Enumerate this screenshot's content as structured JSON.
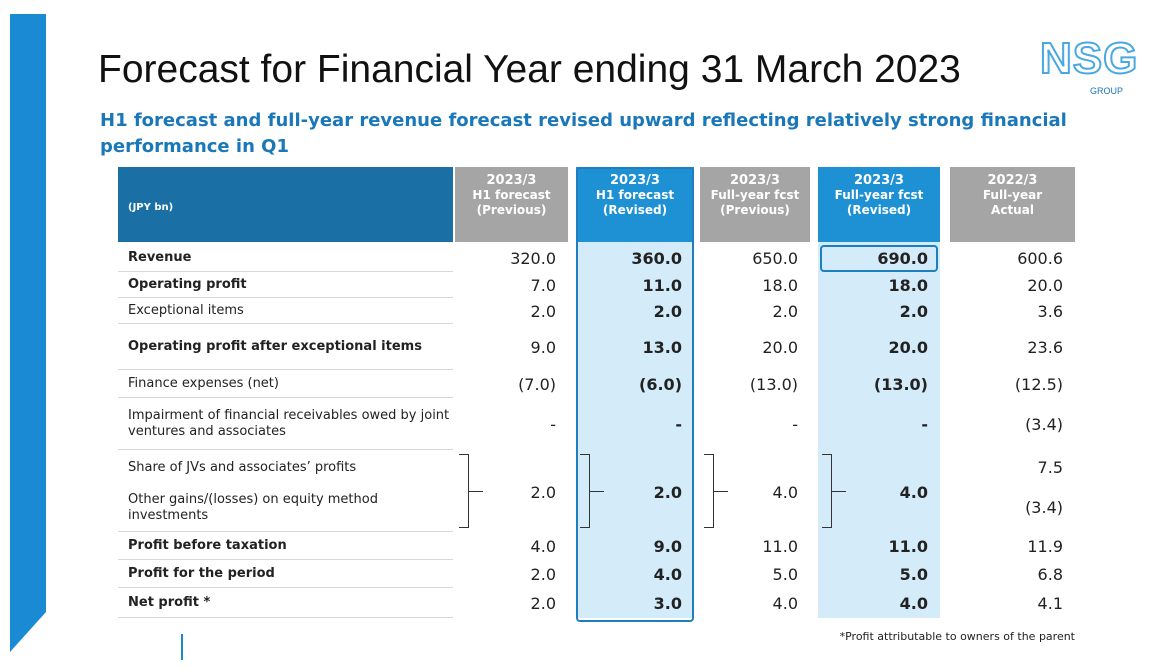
{
  "header": {
    "title": "Forecast for Financial Year ending 31 March 2023",
    "subtitle": "H1 forecast and full-year revenue forecast revised upward reflecting relatively strong financial performance in Q1",
    "logo": "NSG",
    "logo_sub": "GROUP"
  },
  "table": {
    "unit": "(JPY bn)",
    "columns": [
      {
        "period": "2023/3",
        "line1": "H1 forecast",
        "line2": "(Previous)"
      },
      {
        "period": "2023/3",
        "line1": "H1 forecast",
        "line2": "(Revised)"
      },
      {
        "period": "2023/3",
        "line1": "Full-year fcst",
        "line2": "(Previous)"
      },
      {
        "period": "2023/3",
        "line1": "Full-year fcst",
        "line2": "(Revised)"
      },
      {
        "period": "2022/3",
        "line1": "Full-year",
        "line2": "Actual"
      }
    ],
    "rows": [
      {
        "label": "Revenue",
        "bold": true,
        "cells": [
          "320.0",
          "360.0",
          "650.0",
          "690.0",
          "600.6"
        ]
      },
      {
        "label": "Operating profit",
        "bold": true,
        "cells": [
          "7.0",
          "11.0",
          "18.0",
          "18.0",
          "20.0"
        ]
      },
      {
        "label": "Exceptional items",
        "bold": false,
        "cells": [
          "2.0",
          "2.0",
          "2.0",
          "2.0",
          "3.6"
        ]
      },
      {
        "label": "Operating profit after exceptional items",
        "bold": true,
        "cells": [
          "9.0",
          "13.0",
          "20.0",
          "20.0",
          "23.6"
        ]
      },
      {
        "label": "Finance expenses (net)",
        "bold": false,
        "cells": [
          "(7.0)",
          "(6.0)",
          "(13.0)",
          "(13.0)",
          "(12.5)"
        ]
      },
      {
        "label": "Impairment of financial receivables owed by joint ventures and associates",
        "bold": false,
        "cells": [
          "-",
          "-",
          "-",
          "-",
          "(3.4)"
        ]
      },
      {
        "labels": [
          "Share of JVs and associates’ profits",
          "Other gains/(losses) on equity method investments"
        ],
        "bold": false,
        "cells": [
          "2.0",
          "2.0",
          "4.0",
          "4.0"
        ],
        "actual": [
          "7.5",
          "(3.4)"
        ]
      },
      {
        "label": "Profit before taxation",
        "bold": true,
        "cells": [
          "4.0",
          "9.0",
          "11.0",
          "11.0",
          "11.9"
        ]
      },
      {
        "label": "Profit for the period",
        "bold": true,
        "cells": [
          "2.0",
          "4.0",
          "5.0",
          "5.0",
          "6.8"
        ]
      },
      {
        "label": "Net profit *",
        "bold": true,
        "cells": [
          "2.0",
          "3.0",
          "4.0",
          "4.0",
          "4.1"
        ]
      }
    ],
    "footnote": "*Profit attributable to owners of the parent"
  }
}
